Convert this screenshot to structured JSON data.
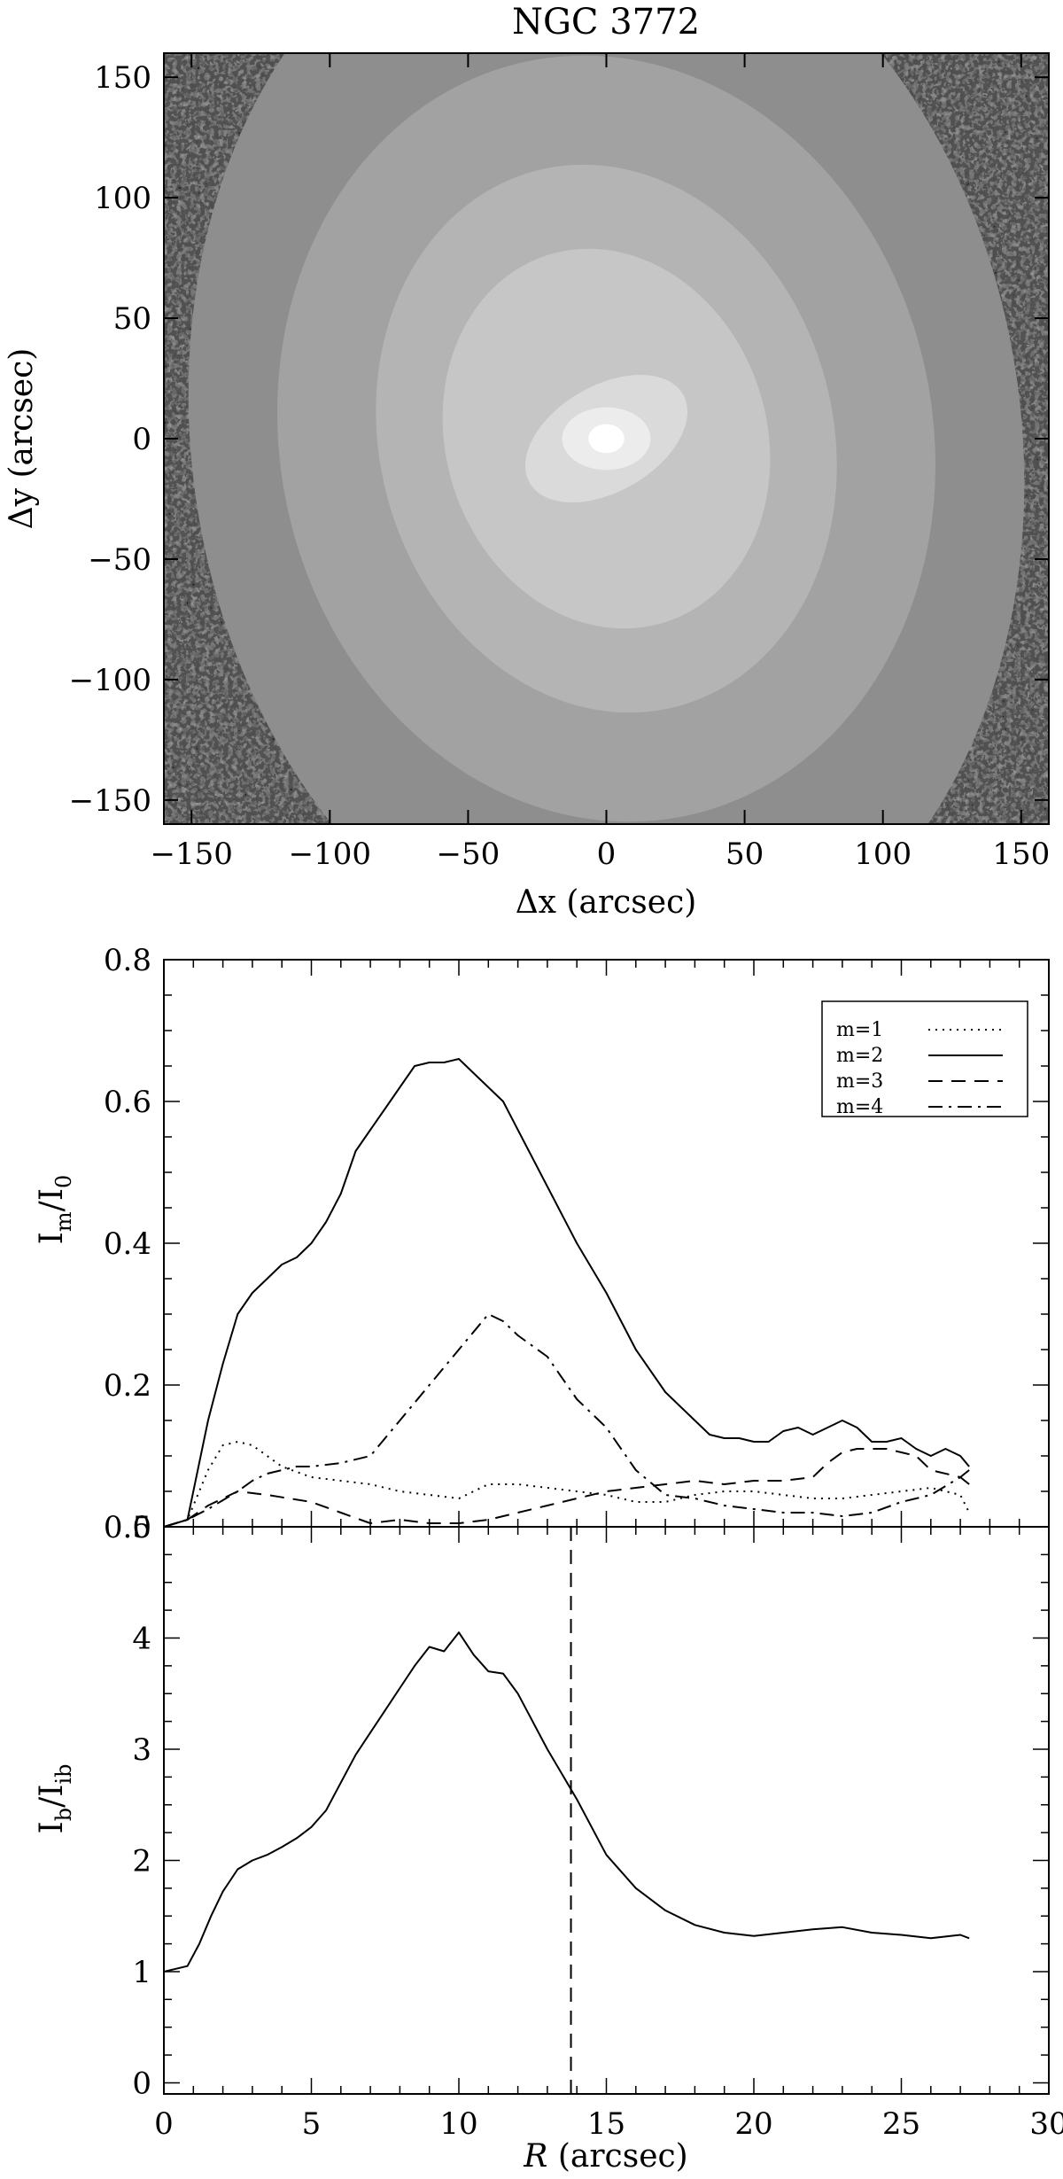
{
  "chart_data": [
    {
      "type": "heatmap",
      "title": "NGC 3772",
      "xlabel": "Δx (arcsec)",
      "ylabel": "Δy (arcsec)",
      "xlim": [
        -160,
        160
      ],
      "ylim": [
        -160,
        160
      ],
      "xticks": [
        -150,
        -100,
        -50,
        0,
        50,
        100,
        150
      ],
      "yticks": [
        -150,
        -100,
        -50,
        0,
        50,
        100,
        150
      ],
      "xtick_labels": [
        "−150",
        "−100",
        "−50",
        "0",
        "50",
        "100",
        "150"
      ],
      "ytick_labels": [
        "−150",
        "−100",
        "−50",
        "0",
        "50",
        "100",
        "150"
      ],
      "colormap": "grayscale",
      "center": [
        0,
        0
      ]
    },
    {
      "type": "line",
      "ylabel_main": "I",
      "ylabel_sub": "m",
      "ylabel_slash": "/I",
      "ylabel_sub2": "0",
      "xlim": [
        0,
        30
      ],
      "ylim": [
        0,
        0.8
      ],
      "xticks": [
        0,
        5,
        10,
        15,
        20,
        25,
        30
      ],
      "yticks": [
        0,
        0.2,
        0.4,
        0.6,
        0.8
      ],
      "ytick_labels": [
        "0.0",
        "0.2",
        "0.4",
        "0.6",
        "0.8"
      ],
      "legend_position": "top-right",
      "series": [
        {
          "name": "m=1",
          "style": "dotted",
          "x": [
            0,
            0.8,
            1.5,
            2,
            2.5,
            3,
            3.5,
            4,
            5,
            6,
            7,
            8,
            9,
            10,
            11,
            12,
            13,
            14,
            15,
            16,
            17,
            18,
            19,
            20,
            21,
            22,
            23,
            24,
            25,
            26,
            27,
            27.3
          ],
          "y": [
            0,
            0.01,
            0.08,
            0.115,
            0.12,
            0.115,
            0.1,
            0.085,
            0.07,
            0.065,
            0.06,
            0.05,
            0.045,
            0.04,
            0.06,
            0.06,
            0.055,
            0.05,
            0.045,
            0.035,
            0.035,
            0.045,
            0.05,
            0.05,
            0.045,
            0.04,
            0.04,
            0.045,
            0.05,
            0.055,
            0.045,
            0.02
          ]
        },
        {
          "name": "m=2",
          "style": "solid",
          "x": [
            0,
            0.8,
            1.5,
            2,
            2.5,
            3,
            3.5,
            4,
            4.5,
            5,
            5.5,
            6,
            6.5,
            7,
            7.5,
            8,
            8.5,
            9,
            9.5,
            10,
            10.5,
            11,
            11.5,
            12,
            13,
            14,
            15,
            16,
            17,
            18,
            18.5,
            19,
            19.5,
            20,
            20.5,
            21,
            21.5,
            22,
            22.5,
            23,
            23.5,
            24,
            24.5,
            25,
            25.5,
            26,
            26.5,
            27,
            27.3
          ],
          "y": [
            0,
            0.01,
            0.15,
            0.23,
            0.3,
            0.33,
            0.35,
            0.37,
            0.38,
            0.4,
            0.43,
            0.47,
            0.53,
            0.56,
            0.59,
            0.62,
            0.65,
            0.655,
            0.655,
            0.66,
            0.64,
            0.62,
            0.6,
            0.56,
            0.48,
            0.4,
            0.33,
            0.25,
            0.19,
            0.15,
            0.13,
            0.125,
            0.125,
            0.12,
            0.12,
            0.135,
            0.14,
            0.13,
            0.14,
            0.15,
            0.14,
            0.12,
            0.12,
            0.125,
            0.11,
            0.1,
            0.11,
            0.1,
            0.085
          ]
        },
        {
          "name": "m=3",
          "style": "dashed",
          "x": [
            0,
            0.8,
            1.5,
            2.5,
            3.5,
            5,
            6,
            7,
            8,
            9,
            10,
            11,
            12,
            13,
            14,
            15,
            16,
            17,
            18,
            19,
            20,
            21,
            22,
            22.5,
            23,
            23.5,
            24,
            24.5,
            25,
            25.5,
            26,
            27,
            27.3
          ],
          "y": [
            0,
            0.01,
            0.03,
            0.05,
            0.045,
            0.035,
            0.02,
            0.005,
            0.01,
            0.005,
            0.005,
            0.01,
            0.02,
            0.03,
            0.04,
            0.05,
            0.055,
            0.06,
            0.065,
            0.06,
            0.065,
            0.065,
            0.07,
            0.09,
            0.105,
            0.11,
            0.11,
            0.11,
            0.105,
            0.1,
            0.08,
            0.07,
            0.06
          ]
        },
        {
          "name": "m=4",
          "style": "dashdot",
          "x": [
            0,
            0.8,
            1.5,
            2.5,
            3,
            3.5,
            4,
            4.5,
            5,
            6,
            7,
            8,
            9,
            10,
            11,
            11.5,
            12,
            13,
            14,
            15,
            16,
            17,
            18,
            19,
            20,
            21,
            22,
            23,
            24,
            25,
            26,
            27,
            27.3
          ],
          "y": [
            0,
            0.01,
            0.025,
            0.05,
            0.065,
            0.075,
            0.08,
            0.085,
            0.085,
            0.09,
            0.1,
            0.15,
            0.2,
            0.25,
            0.3,
            0.29,
            0.27,
            0.24,
            0.18,
            0.14,
            0.08,
            0.045,
            0.04,
            0.03,
            0.025,
            0.02,
            0.02,
            0.015,
            0.02,
            0.035,
            0.045,
            0.07,
            0.08
          ]
        }
      ]
    },
    {
      "type": "line",
      "xlabel_italic": "R",
      "xlabel_rest": " (arcsec)",
      "ylabel_main": "I",
      "ylabel_sub": "b",
      "ylabel_slash": "/I",
      "ylabel_sub2": "ib",
      "xlim": [
        0,
        30
      ],
      "ylim": [
        -0.1,
        5
      ],
      "xticks": [
        0,
        5,
        10,
        15,
        20,
        25,
        30
      ],
      "yticks": [
        0,
        1,
        2,
        3,
        4,
        5
      ],
      "vline_x": 13.8,
      "series": [
        {
          "style": "solid",
          "x": [
            0,
            0.8,
            1.2,
            1.6,
            2,
            2.5,
            3,
            3.5,
            4,
            4.5,
            5,
            5.5,
            6,
            6.5,
            7,
            7.5,
            8,
            8.5,
            9,
            9.5,
            10,
            10.5,
            11,
            11.5,
            12,
            13,
            14,
            15,
            16,
            17,
            18,
            19,
            20,
            21,
            22,
            23,
            24,
            25,
            26,
            27,
            27.3
          ],
          "y": [
            1,
            1.05,
            1.25,
            1.5,
            1.72,
            1.92,
            2.0,
            2.05,
            2.12,
            2.2,
            2.3,
            2.45,
            2.7,
            2.95,
            3.15,
            3.35,
            3.55,
            3.75,
            3.92,
            3.88,
            4.05,
            3.85,
            3.7,
            3.68,
            3.5,
            3.0,
            2.55,
            2.05,
            1.75,
            1.55,
            1.42,
            1.35,
            1.32,
            1.35,
            1.38,
            1.4,
            1.35,
            1.33,
            1.3,
            1.33,
            1.3
          ]
        }
      ]
    }
  ]
}
